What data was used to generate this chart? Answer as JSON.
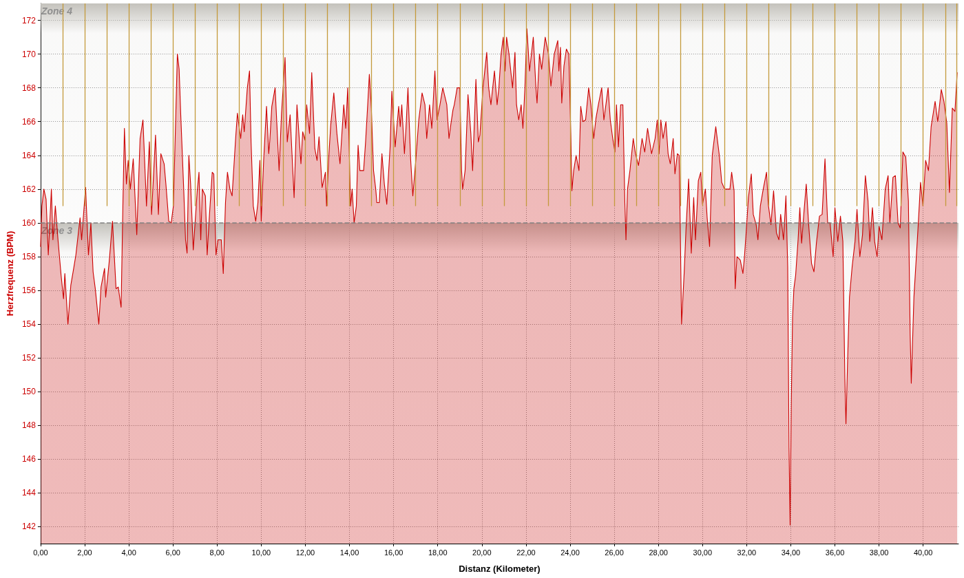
{
  "chart_data": {
    "type": "area",
    "xlabel": "Distanz (Kilometer)",
    "ylabel": "Herzfrequenz (BPM)",
    "color": "#cc0000",
    "x": [
      0.0,
      0.06,
      0.15,
      0.25,
      0.35,
      0.49,
      0.56,
      0.67,
      0.79,
      0.93,
      1.04,
      1.1,
      1.24,
      1.37,
      1.5,
      1.6,
      1.79,
      1.86,
      2.04,
      2.17,
      2.28,
      2.38,
      2.48,
      2.64,
      2.74,
      2.9,
      2.95,
      3.11,
      3.26,
      3.42,
      3.52,
      3.65,
      3.73,
      3.8,
      3.89,
      3.97,
      4.07,
      4.2,
      4.36,
      4.51,
      4.64,
      4.8,
      4.93,
      5.03,
      5.21,
      5.34,
      5.45,
      5.6,
      5.68,
      5.81,
      5.92,
      6.02,
      6.2,
      6.28,
      6.35,
      6.49,
      6.57,
      6.64,
      6.72,
      6.8,
      6.92,
      7.1,
      7.18,
      7.26,
      7.33,
      7.47,
      7.55,
      7.65,
      7.78,
      7.85,
      7.95,
      8.04,
      8.19,
      8.28,
      8.38,
      8.47,
      8.58,
      8.68,
      8.84,
      8.92,
      9.07,
      9.16,
      9.23,
      9.37,
      9.47,
      9.54,
      9.64,
      9.75,
      9.85,
      9.94,
      10.0,
      10.11,
      10.24,
      10.34,
      10.39,
      10.48,
      10.63,
      10.81,
      10.92,
      11.08,
      11.18,
      11.31,
      11.49,
      11.62,
      11.8,
      11.88,
      11.98,
      12.06,
      12.19,
      12.29,
      12.43,
      12.53,
      12.62,
      12.76,
      12.91,
      12.96,
      13.07,
      13.15,
      13.29,
      13.43,
      13.57,
      13.74,
      13.83,
      13.92,
      14.05,
      14.12,
      14.21,
      14.31,
      14.39,
      14.47,
      14.64,
      14.73,
      14.83,
      14.9,
      14.99,
      15.09,
      15.19,
      15.24,
      15.35,
      15.47,
      15.58,
      15.69,
      15.84,
      15.92,
      16.07,
      16.23,
      16.3,
      16.37,
      16.49,
      16.56,
      16.65,
      16.77,
      16.87,
      17.01,
      17.14,
      17.29,
      17.42,
      17.5,
      17.63,
      17.73,
      17.87,
      17.97,
      18.1,
      18.23,
      18.41,
      18.51,
      18.6,
      18.69,
      18.75,
      18.88,
      19.0,
      19.08,
      19.13,
      19.24,
      19.37,
      19.5,
      19.58,
      19.73,
      19.84,
      19.91,
      20.05,
      20.22,
      20.31,
      20.41,
      20.57,
      20.69,
      20.77,
      20.87,
      20.97,
      21.05,
      21.12,
      21.23,
      21.39,
      21.5,
      21.57,
      21.67,
      21.78,
      21.86,
      21.95,
      22.04,
      22.16,
      22.33,
      22.45,
      22.5,
      22.61,
      22.71,
      22.87,
      23.02,
      23.13,
      23.28,
      23.44,
      23.49,
      23.56,
      23.62,
      23.72,
      23.83,
      23.94,
      24.03,
      24.08,
      24.16,
      24.27,
      24.4,
      24.48,
      24.58,
      24.7,
      24.84,
      24.94,
      25.07,
      25.17,
      25.28,
      25.43,
      25.53,
      25.72,
      25.82,
      25.93,
      26.03,
      26.1,
      26.19,
      26.29,
      26.39,
      26.48,
      26.53,
      26.6,
      26.71,
      26.86,
      26.96,
      27.1,
      27.26,
      27.38,
      27.51,
      27.69,
      27.85,
      27.95,
      28.03,
      28.11,
      28.21,
      28.34,
      28.44,
      28.54,
      28.67,
      28.75,
      28.86,
      28.94,
      28.98,
      29.05,
      29.17,
      29.25,
      29.37,
      29.49,
      29.6,
      29.68,
      29.81,
      29.92,
      30.0,
      30.13,
      30.21,
      30.32,
      30.44,
      30.6,
      30.76,
      30.87,
      31.0,
      31.24,
      31.32,
      31.43,
      31.48,
      31.56,
      31.71,
      31.83,
      31.9,
      31.98,
      32.08,
      32.21,
      32.3,
      32.43,
      32.51,
      32.62,
      32.75,
      32.9,
      32.98,
      33.1,
      33.22,
      33.35,
      33.46,
      33.54,
      33.67,
      33.78,
      33.86,
      33.92,
      33.97,
      34.02,
      34.08,
      34.14,
      34.22,
      34.33,
      34.41,
      34.49,
      34.6,
      34.7,
      34.81,
      34.94,
      35.05,
      35.16,
      35.3,
      35.42,
      35.55,
      35.67,
      35.78,
      35.92,
      36.0,
      36.13,
      36.25,
      36.36,
      36.45,
      36.5,
      36.58,
      36.66,
      36.78,
      36.91,
      37.0,
      37.13,
      37.25,
      37.38,
      37.5,
      37.58,
      37.7,
      37.8,
      37.91,
      38.0,
      38.13,
      38.28,
      38.41,
      38.49,
      38.63,
      38.74,
      38.86,
      38.96,
      39.08,
      39.21,
      39.33,
      39.41,
      39.46,
      39.58,
      39.69,
      39.78,
      39.88,
      39.99,
      40.11,
      40.24,
      40.36,
      40.54,
      40.66,
      40.82,
      40.94,
      41.07,
      41.19,
      41.32,
      41.44,
      41.54
    ],
    "values": [
      158.6,
      161.0,
      162.0,
      161.4,
      158.1,
      162.0,
      159.0,
      161.0,
      159.0,
      156.9,
      155.5,
      157.0,
      154.0,
      156.3,
      157.3,
      158.1,
      160.3,
      159.0,
      162.1,
      158.1,
      160.0,
      157.1,
      156.1,
      154.0,
      156.2,
      157.3,
      155.6,
      157.7,
      160.1,
      156.1,
      156.2,
      155.0,
      161.0,
      165.6,
      162.3,
      163.7,
      162.0,
      163.8,
      159.3,
      165.0,
      166.1,
      161.0,
      164.8,
      160.5,
      165.2,
      160.5,
      164.1,
      163.5,
      162.3,
      160.1,
      160.0,
      161.0,
      170.0,
      169.1,
      166.5,
      161.9,
      159.0,
      158.2,
      164.0,
      162.3,
      158.4,
      161.9,
      163.0,
      159.0,
      162.0,
      161.6,
      158.1,
      160.4,
      163.0,
      162.9,
      158.1,
      159.0,
      159.0,
      157.0,
      161.2,
      163.0,
      162.0,
      161.6,
      165.0,
      166.5,
      165.0,
      166.4,
      165.4,
      168.0,
      169.0,
      164.8,
      161.0,
      160.1,
      161.2,
      163.7,
      160.1,
      163.7,
      166.9,
      164.1,
      164.9,
      166.9,
      168.0,
      163.1,
      166.5,
      169.8,
      164.8,
      166.4,
      161.5,
      167.0,
      163.5,
      165.4,
      164.9,
      167.0,
      165.3,
      168.9,
      164.4,
      163.7,
      165.1,
      162.1,
      163.0,
      161.0,
      164.1,
      165.8,
      167.7,
      165.3,
      163.5,
      167.0,
      165.6,
      168.0,
      161.0,
      162.0,
      160.0,
      161.0,
      164.6,
      163.1,
      163.1,
      164.8,
      167.1,
      168.8,
      166.8,
      163.1,
      162.0,
      161.2,
      161.2,
      164.1,
      162.3,
      161.1,
      164.5,
      167.8,
      164.5,
      166.9,
      165.7,
      167.0,
      164.1,
      165.6,
      168.0,
      163.8,
      161.6,
      163.8,
      166.1,
      167.7,
      167.0,
      165.0,
      167.0,
      165.6,
      169.0,
      166.1,
      167.0,
      168.0,
      167.0,
      165.0,
      165.9,
      166.7,
      167.0,
      168.0,
      168.0,
      163.1,
      162.0,
      163.1,
      167.6,
      165.3,
      163.1,
      168.5,
      164.8,
      165.2,
      168.0,
      170.1,
      168.0,
      167.0,
      169.0,
      167.0,
      168.0,
      170.0,
      171.0,
      169.0,
      171.0,
      170.0,
      168.0,
      170.1,
      167.0,
      166.1,
      167.0,
      165.6,
      168.0,
      171.5,
      169.0,
      171.0,
      168.0,
      167.1,
      170.0,
      169.1,
      171.0,
      170.0,
      168.1,
      170.0,
      170.8,
      169.0,
      170.4,
      167.1,
      169.3,
      170.3,
      170.0,
      165.3,
      161.9,
      163.1,
      164.0,
      163.1,
      166.9,
      166.0,
      166.1,
      168.0,
      167.0,
      165.0,
      166.2,
      167.0,
      168.0,
      166.1,
      168.0,
      166.1,
      165.0,
      164.2,
      167.0,
      164.5,
      167.0,
      167.0,
      161.2,
      159.0,
      162.0,
      163.1,
      165.0,
      164.1,
      163.4,
      165.0,
      164.2,
      165.6,
      164.1,
      165.0,
      166.1,
      164.1,
      166.1,
      165.0,
      166.0,
      164.1,
      163.5,
      165.0,
      162.9,
      164.1,
      164.0,
      160.7,
      154.0,
      157.1,
      159.6,
      162.6,
      158.2,
      161.5,
      159.0,
      162.5,
      163.0,
      161.1,
      162.0,
      160.3,
      158.6,
      164.0,
      165.7,
      164.0,
      162.4,
      162.0,
      162.0,
      163.0,
      161.9,
      156.1,
      158.0,
      157.8,
      157.0,
      158.0,
      159.5,
      161.5,
      162.9,
      160.5,
      159.9,
      159.0,
      161.0,
      162.0,
      163.0,
      161.1,
      159.9,
      161.9,
      159.4,
      159.0,
      160.5,
      159.0,
      161.6,
      157.4,
      146.7,
      142.1,
      149.2,
      154.4,
      156.1,
      156.9,
      159.0,
      160.9,
      158.8,
      160.7,
      162.3,
      159.9,
      157.6,
      157.1,
      158.8,
      160.4,
      160.5,
      163.8,
      160.0,
      160.0,
      158.0,
      160.9,
      158.9,
      160.4,
      158.9,
      150.8,
      148.1,
      152.1,
      155.6,
      157.4,
      158.9,
      160.8,
      158.0,
      159.3,
      162.8,
      161.3,
      158.9,
      160.9,
      158.9,
      158.0,
      159.8,
      159.0,
      162.0,
      162.8,
      160.0,
      162.7,
      162.8,
      160.0,
      159.7,
      164.2,
      163.9,
      161.3,
      153.4,
      150.5,
      155.6,
      158.0,
      160.0,
      162.4,
      161.0,
      163.7,
      163.1,
      165.7,
      167.2,
      166.0,
      167.9,
      167.2,
      165.9,
      161.8,
      166.8,
      166.6,
      168.9
    ],
    "xlim": [
      0,
      41.6
    ],
    "xticks": [
      {
        "value": 0,
        "label": "0,00"
      },
      {
        "value": 2,
        "label": "2,00"
      },
      {
        "value": 4,
        "label": "4,00"
      },
      {
        "value": 6,
        "label": "6,00"
      },
      {
        "value": 8,
        "label": "8,00"
      },
      {
        "value": 10,
        "label": "10,00"
      },
      {
        "value": 12,
        "label": "12,00"
      },
      {
        "value": 14,
        "label": "14,00"
      },
      {
        "value": 16,
        "label": "16,00"
      },
      {
        "value": 18,
        "label": "18,00"
      },
      {
        "value": 20,
        "label": "20,00"
      },
      {
        "value": 22,
        "label": "22,00"
      },
      {
        "value": 24,
        "label": "24,00"
      },
      {
        "value": 26,
        "label": "26,00"
      },
      {
        "value": 28,
        "label": "28,00"
      },
      {
        "value": 30,
        "label": "30,00"
      },
      {
        "value": 32,
        "label": "32,00"
      },
      {
        "value": 34,
        "label": "34,00"
      },
      {
        "value": 36,
        "label": "36,00"
      },
      {
        "value": 38,
        "label": "38,00"
      },
      {
        "value": 40,
        "label": "40,00"
      }
    ],
    "ylim": [
      141,
      173
    ],
    "yticks": [
      142,
      144,
      146,
      148,
      150,
      152,
      154,
      156,
      158,
      160,
      162,
      164,
      166,
      168,
      170,
      172
    ],
    "grid": true,
    "bands": [
      {
        "axis": "y",
        "from": 160,
        "to": 173,
        "label": "Zone 4",
        "color": "#c4c2bc"
      },
      {
        "axis": "y",
        "from": 141,
        "to": 160,
        "label": "Zone 3",
        "color": "#c4c2bc"
      }
    ],
    "ref_lines": [
      {
        "axis": "y",
        "value": 160,
        "color": "#808080",
        "line_style": "dashed"
      },
      {
        "axis": "x",
        "value": 1,
        "color": "#c49a3c"
      },
      {
        "axis": "x",
        "value": 2,
        "color": "#c49a3c"
      },
      {
        "axis": "x",
        "value": 3,
        "color": "#c49a3c"
      },
      {
        "axis": "x",
        "value": 4,
        "color": "#c49a3c"
      },
      {
        "axis": "x",
        "value": 5,
        "color": "#c49a3c"
      },
      {
        "axis": "x",
        "value": 6,
        "color": "#c49a3c"
      },
      {
        "axis": "x",
        "value": 7,
        "color": "#c49a3c"
      },
      {
        "axis": "x",
        "value": 8,
        "color": "#c49a3c"
      },
      {
        "axis": "x",
        "value": 9,
        "color": "#c49a3c"
      },
      {
        "axis": "x",
        "value": 10,
        "color": "#c49a3c"
      },
      {
        "axis": "x",
        "value": 11,
        "color": "#c49a3c"
      },
      {
        "axis": "x",
        "value": 12,
        "color": "#c49a3c"
      },
      {
        "axis": "x",
        "value": 13,
        "color": "#c49a3c"
      },
      {
        "axis": "x",
        "value": 14,
        "color": "#c49a3c"
      },
      {
        "axis": "x",
        "value": 15,
        "color": "#c49a3c"
      },
      {
        "axis": "x",
        "value": 16,
        "color": "#c49a3c"
      },
      {
        "axis": "x",
        "value": 17,
        "color": "#c49a3c"
      },
      {
        "axis": "x",
        "value": 18,
        "color": "#c49a3c"
      },
      {
        "axis": "x",
        "value": 19,
        "color": "#c49a3c"
      },
      {
        "axis": "x",
        "value": 20,
        "color": "#c49a3c"
      },
      {
        "axis": "x",
        "value": 21,
        "color": "#c49a3c"
      },
      {
        "axis": "x",
        "value": 22,
        "color": "#c49a3c"
      },
      {
        "axis": "x",
        "value": 23,
        "color": "#c49a3c"
      },
      {
        "axis": "x",
        "value": 24,
        "color": "#c49a3c"
      },
      {
        "axis": "x",
        "value": 25,
        "color": "#c49a3c"
      },
      {
        "axis": "x",
        "value": 26,
        "color": "#c49a3c"
      },
      {
        "axis": "x",
        "value": 27,
        "color": "#c49a3c"
      },
      {
        "axis": "x",
        "value": 28,
        "color": "#c49a3c"
      },
      {
        "axis": "x",
        "value": 29,
        "color": "#c49a3c"
      },
      {
        "axis": "x",
        "value": 30,
        "color": "#c49a3c"
      },
      {
        "axis": "x",
        "value": 31,
        "color": "#c49a3c"
      },
      {
        "axis": "x",
        "value": 32,
        "color": "#c49a3c"
      },
      {
        "axis": "x",
        "value": 33,
        "color": "#c49a3c"
      },
      {
        "axis": "x",
        "value": 34,
        "color": "#c49a3c"
      },
      {
        "axis": "x",
        "value": 35,
        "color": "#c49a3c"
      },
      {
        "axis": "x",
        "value": 36,
        "color": "#c49a3c"
      },
      {
        "axis": "x",
        "value": 37,
        "color": "#c49a3c"
      },
      {
        "axis": "x",
        "value": 38,
        "color": "#c49a3c"
      },
      {
        "axis": "x",
        "value": 39,
        "color": "#c49a3c"
      },
      {
        "axis": "x",
        "value": 40,
        "color": "#c49a3c"
      },
      {
        "axis": "x",
        "value": 41,
        "color": "#c49a3c"
      },
      {
        "axis": "x",
        "value": 41.5,
        "color": "#c49a3c"
      }
    ]
  }
}
